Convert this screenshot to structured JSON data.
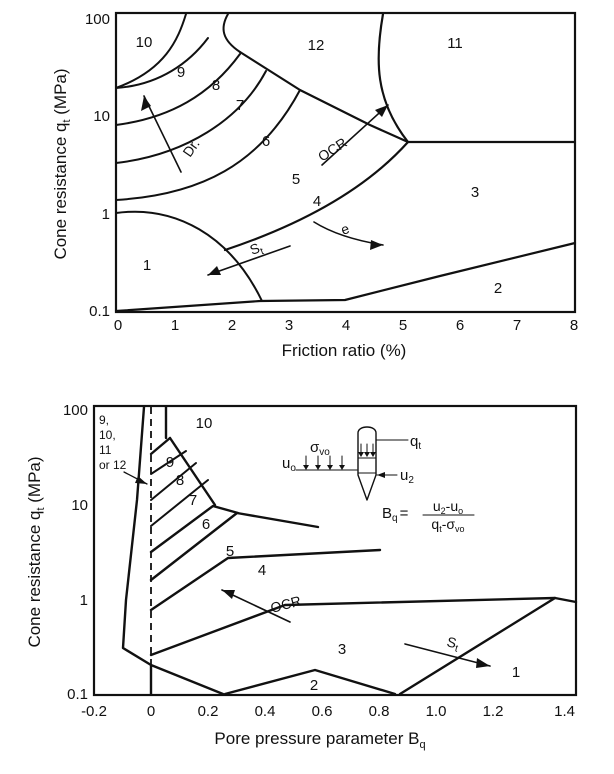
{
  "top_chart": {
    "ylabel": "Cone resistance q",
    "ylabel_sub": "t",
    "ylabel_unit": " (MPa)",
    "xlabel": "Friction ratio (%)",
    "x_ticks": [
      "0",
      "1",
      "2",
      "3",
      "4",
      "5",
      "6",
      "7",
      "8"
    ],
    "y_ticks": [
      "0.1",
      "1",
      "10",
      "100"
    ],
    "zones": [
      "1",
      "2",
      "3",
      "4",
      "5",
      "6",
      "7",
      "8",
      "9",
      "10",
      "11",
      "12"
    ],
    "annotations": {
      "dr": "Dr.",
      "ocr": "OCR",
      "e": "e",
      "st": "S",
      "st_sub": "t"
    }
  },
  "bottom_chart": {
    "ylabel": "Cone resistance q",
    "ylabel_sub": "t",
    "ylabel_unit": " (MPa)",
    "xlabel": "Pore pressure parameter B",
    "xlabel_sub": "q",
    "x_ticks": [
      "-0.2",
      "0",
      "0.2",
      "0.4",
      "0.6",
      "0.8",
      "1.0",
      "1.2",
      "1.4"
    ],
    "y_ticks": [
      "0.1",
      "1",
      "10",
      "100"
    ],
    "zones": [
      "1",
      "2",
      "3",
      "4",
      "5",
      "6",
      "7",
      "8",
      "9",
      "10"
    ],
    "side_note": [
      "9,",
      "10,",
      "11",
      "or 12"
    ],
    "annotations": {
      "ocr": "OCR",
      "st": "S",
      "st_sub": "t"
    },
    "inset": {
      "qt": "q",
      "qt_sub": "t",
      "svo": "σ",
      "svo_sub": "vo",
      "uo": "u",
      "uo_sub": "o",
      "u2": "u",
      "u2_sub": "2",
      "bq": "B",
      "bq_sub": "q",
      "eq": "=",
      "num_a": "u",
      "num_a_sub": "2",
      "num_b": "-u",
      "num_b_sub": "o",
      "den_a": "q",
      "den_a_sub": "t",
      "den_b": "-σ",
      "den_b_sub": "vo"
    }
  }
}
